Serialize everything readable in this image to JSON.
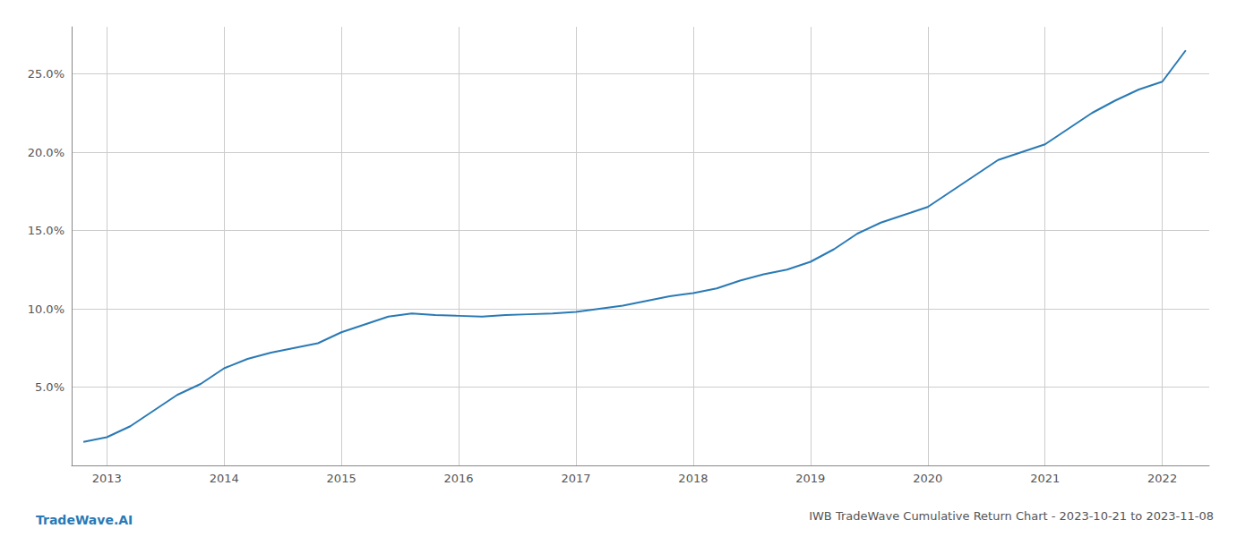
{
  "chart_data": {
    "type": "line",
    "title": "IWB TradeWave Cumulative Return Chart - 2023-10-21 to 2023-11-08",
    "annotations": [
      "TradeWave.AI"
    ],
    "color": "#2a7ab5",
    "x": [
      2012.8,
      2013.0,
      2013.2,
      2013.4,
      2013.6,
      2013.8,
      2014.0,
      2014.2,
      2014.4,
      2014.6,
      2014.8,
      2015.0,
      2015.2,
      2015.4,
      2015.6,
      2015.8,
      2016.0,
      2016.2,
      2016.4,
      2016.6,
      2016.8,
      2017.0,
      2017.2,
      2017.4,
      2017.6,
      2017.8,
      2018.0,
      2018.2,
      2018.4,
      2018.6,
      2018.8,
      2019.0,
      2019.2,
      2019.4,
      2019.6,
      2019.8,
      2020.0,
      2020.2,
      2020.4,
      2020.6,
      2020.8,
      2021.0,
      2021.2,
      2021.4,
      2021.6,
      2021.8,
      2022.0,
      2022.2
    ],
    "values": [
      1.5,
      1.8,
      2.5,
      3.5,
      4.5,
      5.2,
      6.2,
      6.8,
      7.2,
      7.5,
      7.8,
      8.5,
      9.0,
      9.5,
      9.7,
      9.6,
      9.55,
      9.5,
      9.6,
      9.65,
      9.7,
      9.8,
      10.0,
      10.2,
      10.5,
      10.8,
      11.0,
      11.3,
      11.8,
      12.2,
      12.5,
      13.0,
      13.8,
      14.8,
      15.5,
      16.0,
      16.5,
      17.5,
      18.5,
      19.5,
      20.0,
      20.5,
      21.5,
      22.5,
      23.3,
      24.0,
      24.5,
      26.5
    ],
    "xlim": [
      2012.7,
      2022.4
    ],
    "xticks": [
      2013,
      2014,
      2015,
      2016,
      2017,
      2018,
      2019,
      2020,
      2021,
      2022
    ],
    "ylim": [
      0,
      28
    ],
    "yticks": [
      {
        "value": 5.0,
        "label": "5.0%"
      },
      {
        "value": 10.0,
        "label": "10.0%"
      },
      {
        "value": 15.0,
        "label": "15.0%"
      },
      {
        "value": 20.0,
        "label": "20.0%"
      },
      {
        "value": 25.0,
        "label": "25.0%"
      }
    ],
    "grid": true
  }
}
